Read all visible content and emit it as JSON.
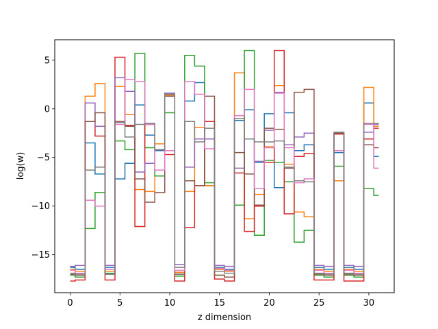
{
  "chart_data": {
    "type": "line",
    "drawstyle": "steps-mid",
    "xlabel": "z dimension",
    "ylabel": "log(w)",
    "xlim": [
      -1.55,
      32.55
    ],
    "ylim": [
      -18.9,
      7.1
    ],
    "xticks": [
      0,
      5,
      10,
      15,
      20,
      25,
      30
    ],
    "yticks": [
      -15,
      -10,
      -5,
      0,
      5
    ],
    "grid": false,
    "x": [
      0,
      1,
      2,
      3,
      4,
      5,
      6,
      7,
      8,
      9,
      10,
      11,
      12,
      13,
      14,
      15,
      16,
      17,
      18,
      19,
      20,
      21,
      22,
      23,
      24,
      25,
      26,
      27,
      28,
      29,
      30,
      31
    ],
    "series": [
      {
        "color": "#1f77b4",
        "values": [
          -16.3,
          -16.5,
          -3.5,
          -6.7,
          -16.3,
          -7.2,
          -5.6,
          0.4,
          -2.7,
          -4.3,
          1.6,
          -17.0,
          0.8,
          2.7,
          -7.9,
          -16.3,
          -16.5,
          -1.2,
          -0.1,
          -5.5,
          -0.5,
          -8.1,
          -0.4,
          -4.3,
          -3.7,
          -16.3,
          -16.5,
          -4.5,
          -16.3,
          -16.5,
          0.6,
          -4.9
        ]
      },
      {
        "color": "#ff7f0e",
        "values": [
          -16.5,
          -16.7,
          1.3,
          2.6,
          -16.7,
          2.3,
          -0.6,
          -8.3,
          -8.5,
          -3.6,
          1.4,
          -16.8,
          -8.5,
          -1.9,
          -7.9,
          -16.5,
          -16.7,
          3.7,
          -11.3,
          -8.8,
          -3.9,
          2.4,
          -5.7,
          -10.6,
          -11.1,
          -16.5,
          -16.7,
          -7.4,
          -16.5,
          -16.7,
          2.2,
          -1.8
        ]
      },
      {
        "color": "#2ca02c",
        "values": [
          -17.1,
          -17.3,
          -12.3,
          -8.6,
          -16.9,
          -3.3,
          -4.2,
          5.7,
          -4.0,
          -6.9,
          -0.4,
          -17.2,
          5.5,
          4.4,
          -7.6,
          -17.1,
          -17.3,
          -9.9,
          6.0,
          -13.0,
          -5.3,
          -5.5,
          -7.5,
          -13.7,
          -12.5,
          -17.1,
          -17.3,
          -5.9,
          -17.1,
          -17.3,
          -8.2,
          -8.9
        ]
      },
      {
        "color": "#d62728",
        "values": [
          -17.7,
          -17.6,
          -1.3,
          -2.8,
          -17.6,
          5.3,
          -1.7,
          -12.1,
          -1.6,
          -4.2,
          -4.7,
          -17.7,
          -12.2,
          -7.9,
          -1.3,
          -17.5,
          -17.7,
          -6.6,
          -12.6,
          -10.0,
          -5.5,
          6.0,
          -10.8,
          -4.9,
          -4.6,
          -17.6,
          -17.6,
          -2.6,
          -17.7,
          -17.7,
          -3.1,
          -2.0
        ]
      },
      {
        "color": "#9467bd",
        "values": [
          -16.2,
          -16.1,
          0.6,
          -1.8,
          -16.1,
          3.2,
          1.8,
          -6.5,
          -5.6,
          -4.2,
          1.6,
          -16.0,
          -6.0,
          -3.1,
          -3.1,
          -16.1,
          -16.2,
          -6.1,
          -3.1,
          -5.4,
          -2.2,
          1.7,
          -3.7,
          -2.9,
          -2.5,
          -16.1,
          -16.2,
          -4.3,
          -16.1,
          -16.2,
          -2.4,
          -1.6
        ]
      },
      {
        "color": "#8c564b",
        "values": [
          -17.0,
          -17.1,
          -1.3,
          -0.4,
          -17.0,
          -1.3,
          -1.8,
          -7.2,
          -9.6,
          -8.6,
          1.3,
          -17.0,
          -7.4,
          -7.9,
          1.3,
          -17.1,
          -17.3,
          -4.5,
          -6.7,
          -9.9,
          -2.0,
          -2.1,
          -6.1,
          1.7,
          2.0,
          -17.0,
          -17.1,
          -2.5,
          -17.0,
          -17.1,
          -3.7,
          -4.0
        ]
      },
      {
        "color": "#e377c2",
        "values": [
          -16.6,
          -16.9,
          -9.4,
          -10.0,
          -16.5,
          -1.6,
          3.0,
          2.8,
          -1.6,
          -6.3,
          -4.3,
          -16.6,
          2.8,
          1.5,
          -4.1,
          -16.4,
          -16.6,
          -0.7,
          2.0,
          -8.2,
          -4.0,
          1.6,
          -4.0,
          -7.6,
          -7.2,
          -16.6,
          -16.9,
          -4.3,
          -16.6,
          -16.9,
          -1.6,
          -6.1
        ]
      },
      {
        "color": "#7f7f7f",
        "values": [
          -16.9,
          -17.0,
          -6.3,
          -6.0,
          -17.0,
          -1.4,
          -2.9,
          -1.6,
          -1.5,
          -4.2,
          1.5,
          -16.3,
          -1.3,
          -3.4,
          -2.0,
          -16.7,
          -16.9,
          -1.0,
          -3.1,
          -3.4,
          -3.4,
          -3.3,
          -6.0,
          -7.4,
          -7.5,
          -16.9,
          -17.0,
          -2.4,
          -16.9,
          -17.0,
          -1.5,
          -1.5
        ]
      }
    ]
  }
}
